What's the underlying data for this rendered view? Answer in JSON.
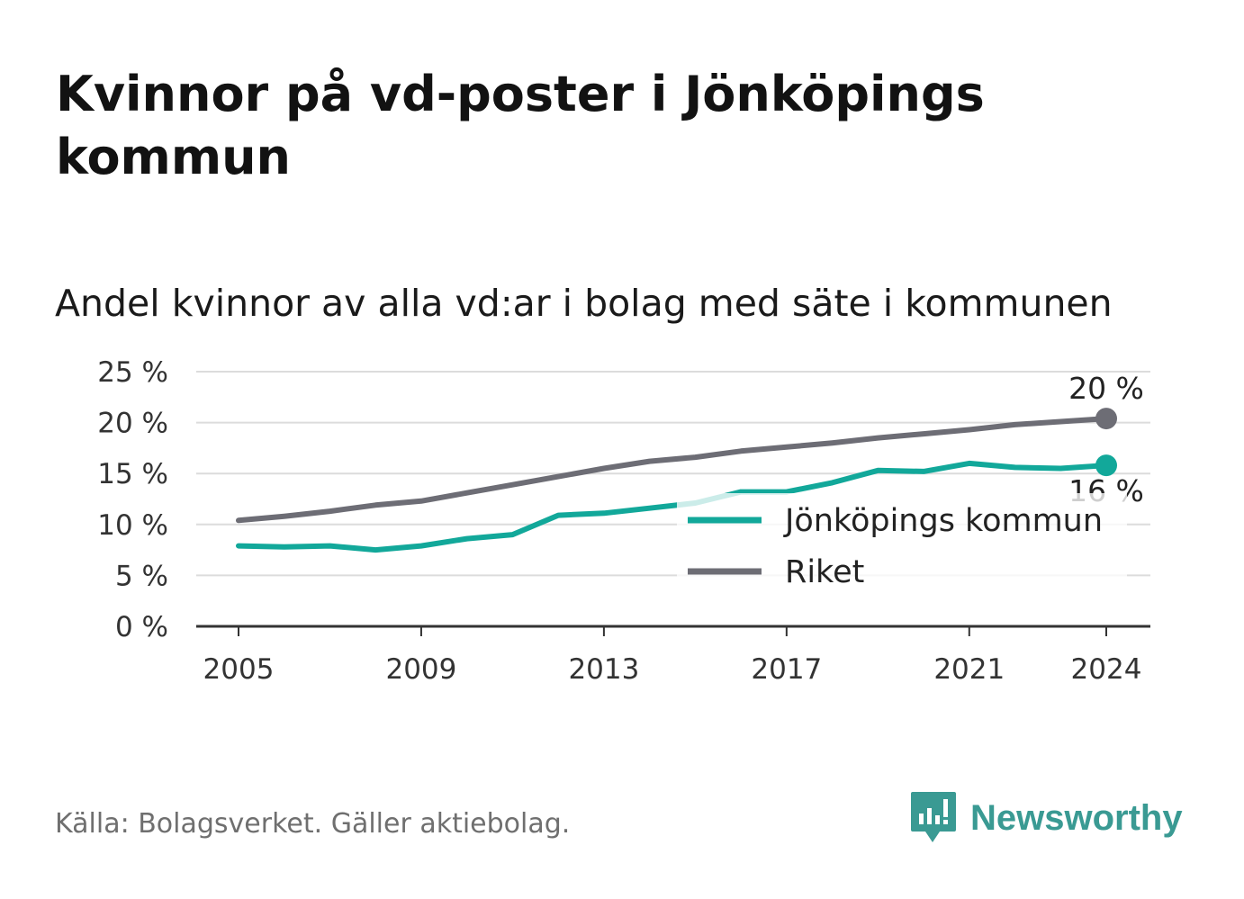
{
  "title": "Kvinnor på vd-poster i Jönköpings kommun",
  "subtitle": "Andel kvinnor av alla vd:ar i bolag med säte i kommunen",
  "source": "Källa: Bolagsverket. Gäller aktiebolag.",
  "brand": {
    "name": "Newsworthy",
    "icon": "newsworthy-logo-icon",
    "color": "#3a9a93"
  },
  "chart_data": {
    "type": "line",
    "x": [
      2005,
      2006,
      2007,
      2008,
      2009,
      2010,
      2011,
      2012,
      2013,
      2014,
      2015,
      2016,
      2017,
      2018,
      2019,
      2020,
      2021,
      2022,
      2023,
      2024
    ],
    "xticks": [
      "2005",
      "2009",
      "2013",
      "2017",
      "2021",
      "2024"
    ],
    "yticks": [
      "0 %",
      "5 %",
      "10 %",
      "15 %",
      "20 %",
      "25 %"
    ],
    "ylim": [
      0,
      25
    ],
    "grid": true,
    "legend_position": "lower-right",
    "series": [
      {
        "name": "Jönköpings kommun",
        "color": "#12a89a",
        "values": [
          7.9,
          7.8,
          7.9,
          7.5,
          7.9,
          8.6,
          9.0,
          10.9,
          11.1,
          11.6,
          12.1,
          13.2,
          13.2,
          14.1,
          15.3,
          15.2,
          16.0,
          15.6,
          15.5,
          15.8
        ],
        "end_label": "16 %"
      },
      {
        "name": "Riket",
        "color": "#6d6d75",
        "values": [
          10.4,
          10.8,
          11.3,
          11.9,
          12.3,
          13.1,
          13.9,
          14.7,
          15.5,
          16.2,
          16.6,
          17.2,
          17.6,
          18.0,
          18.5,
          18.9,
          19.3,
          19.8,
          20.1,
          20.4
        ],
        "end_label": "20 %"
      }
    ]
  }
}
